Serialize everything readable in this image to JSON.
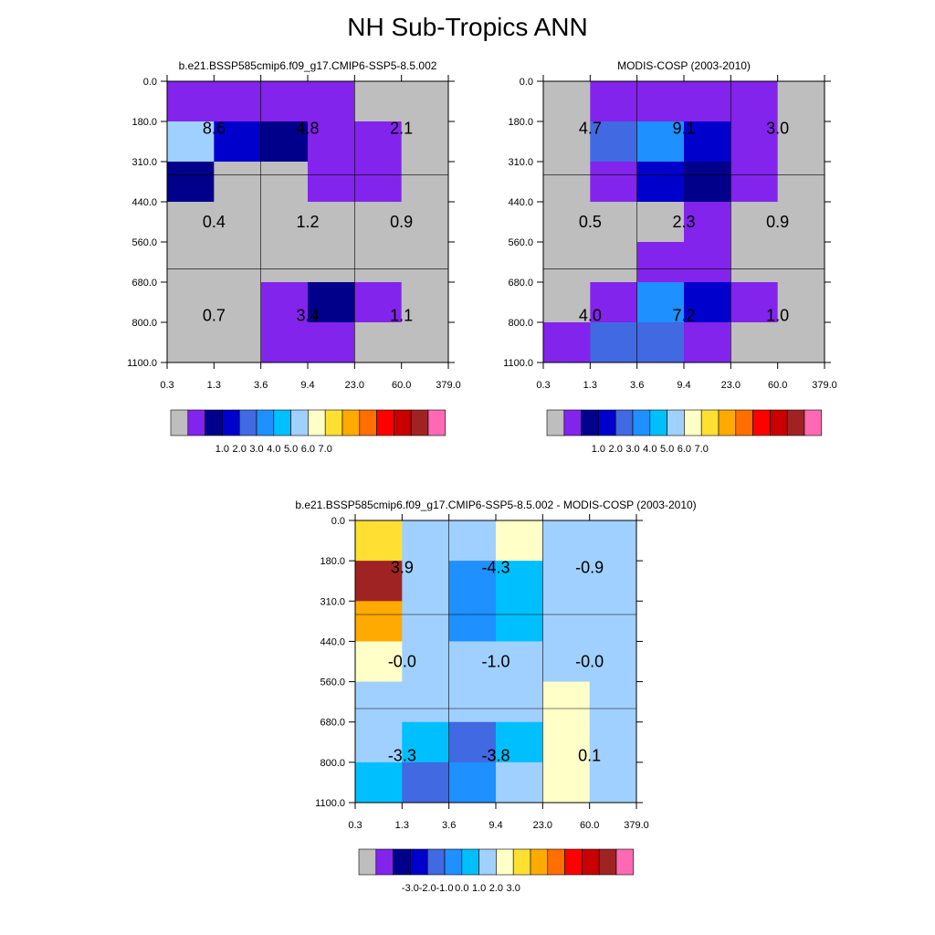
{
  "title": "NH Sub-Tropics ANN",
  "colors": {
    "c0": "#bebebe",
    "c1": "#8224eb",
    "c2": "#00008b",
    "c3": "#0000cd",
    "c4": "#4169e1",
    "c5": "#1e90ff",
    "c6": "#00bfff",
    "c7": "#a0d0ff",
    "c8": "#ffffc8",
    "c9": "#ffe032",
    "c10": "#ffaa00",
    "c11": "#ff6e00",
    "c12": "#ff0000",
    "c13": "#c80000",
    "c14": "#a02323",
    "c15": "#ff69b4"
  },
  "chart_data": [
    {
      "type": "heatmap",
      "title": "b.e21.BSSP585cmip6.f09_g17.CMIP6-SSP5-8.5.002",
      "x_ticks": [
        "0.3",
        "1.3",
        "3.6",
        "9.4",
        "23.0",
        "60.0",
        "379.0"
      ],
      "y_ticks": [
        "0.0",
        "180.0",
        "310.0",
        "440.0",
        "560.0",
        "680.0",
        "800.0",
        "1100.0"
      ],
      "grid": "3x3 coarse bins",
      "cells": [
        [
          "c1",
          "c1",
          "c1",
          "c1",
          "c0",
          "c0"
        ],
        [
          "c7",
          "c3",
          "c2",
          "c1",
          "c1",
          "c0"
        ],
        [
          "c2",
          "c0",
          "c0",
          "c1",
          "c1",
          "c0"
        ],
        [
          "c0",
          "c0",
          "c0",
          "c0",
          "c0",
          "c0"
        ],
        [
          "c0",
          "c0",
          "c0",
          "c0",
          "c0",
          "c0"
        ],
        [
          "c0",
          "c0",
          "c1",
          "c2",
          "c1",
          "c0"
        ],
        [
          "c0",
          "c0",
          "c1",
          "c1",
          "c0",
          "c0"
        ]
      ],
      "values": [
        [
          "8.6",
          "4.8",
          "2.1"
        ],
        [
          "0.4",
          "1.2",
          "0.9"
        ],
        [
          "0.7",
          "3.4",
          "1.1"
        ]
      ],
      "colorbar_labels": [
        "1.0",
        "2.0",
        "3.0",
        "4.0",
        "5.0",
        "6.0",
        "7.0"
      ]
    },
    {
      "type": "heatmap",
      "title": "MODIS-COSP (2003-2010)",
      "x_ticks": [
        "0.3",
        "1.3",
        "3.6",
        "9.4",
        "23.0",
        "60.0",
        "379.0"
      ],
      "y_ticks": [
        "0.0",
        "180.0",
        "310.0",
        "440.0",
        "560.0",
        "680.0",
        "800.0",
        "1100.0"
      ],
      "grid": "3x3 coarse bins",
      "cells": [
        [
          "c0",
          "c1",
          "c1",
          "c1",
          "c1",
          "c0"
        ],
        [
          "c0",
          "c4",
          "c5",
          "c3",
          "c1",
          "c0"
        ],
        [
          "c0",
          "c1",
          "c3",
          "c2",
          "c1",
          "c0"
        ],
        [
          "c0",
          "c0",
          "c0",
          "c1",
          "c0",
          "c0"
        ],
        [
          "c0",
          "c0",
          "c1",
          "c1",
          "c0",
          "c0"
        ],
        [
          "c0",
          "c1",
          "c5",
          "c3",
          "c1",
          "c0"
        ],
        [
          "c1",
          "c4",
          "c4",
          "c1",
          "c0",
          "c0"
        ]
      ],
      "values": [
        [
          "4.7",
          "9.1",
          "3.0"
        ],
        [
          "0.5",
          "2.3",
          "0.9"
        ],
        [
          "4.0",
          "7.2",
          "1.0"
        ]
      ],
      "colorbar_labels": [
        "1.0",
        "2.0",
        "3.0",
        "4.0",
        "5.0",
        "6.0",
        "7.0"
      ]
    },
    {
      "type": "heatmap",
      "title": "b.e21.BSSP585cmip6.f09_g17.CMIP6-SSP5-8.5.002 - MODIS-COSP (2003-2010)",
      "x_ticks": [
        "0.3",
        "1.3",
        "3.6",
        "9.4",
        "23.0",
        "60.0",
        "379.0"
      ],
      "y_ticks": [
        "0.0",
        "180.0",
        "310.0",
        "440.0",
        "560.0",
        "680.0",
        "800.0",
        "1100.0"
      ],
      "grid": "3x3 coarse bins",
      "cells": [
        [
          "c9",
          "c7",
          "c7",
          "c8",
          "c7",
          "c7"
        ],
        [
          "c14",
          "c7",
          "c5",
          "c6",
          "c7",
          "c7"
        ],
        [
          "c10",
          "c7",
          "c5",
          "c6",
          "c7",
          "c7"
        ],
        [
          "c8",
          "c7",
          "c7",
          "c7",
          "c7",
          "c7"
        ],
        [
          "c7",
          "c7",
          "c7",
          "c7",
          "c8",
          "c7"
        ],
        [
          "c7",
          "c6",
          "c4",
          "c6",
          "c8",
          "c7"
        ],
        [
          "c6",
          "c4",
          "c5",
          "c7",
          "c8",
          "c7"
        ]
      ],
      "values": [
        [
          "3.9",
          "-4.3",
          "-0.9"
        ],
        [
          "-0.0",
          "-1.0",
          "-0.0"
        ],
        [
          "-3.3",
          "-3.8",
          "0.1"
        ]
      ],
      "colorbar_labels": [
        "-3.0",
        "-2.0",
        "-1.0",
        "0.0",
        "1.0",
        "2.0",
        "3.0"
      ]
    }
  ]
}
